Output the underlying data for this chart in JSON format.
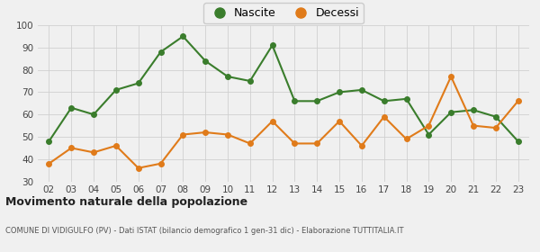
{
  "years": [
    "02",
    "03",
    "04",
    "05",
    "06",
    "07",
    "08",
    "09",
    "10",
    "11",
    "12",
    "13",
    "14",
    "15",
    "16",
    "17",
    "18",
    "19",
    "20",
    "21",
    "22",
    "23"
  ],
  "nascite": [
    48,
    63,
    60,
    71,
    74,
    88,
    95,
    84,
    77,
    75,
    91,
    66,
    66,
    70,
    71,
    66,
    67,
    51,
    61,
    62,
    59,
    48
  ],
  "decessi": [
    38,
    45,
    43,
    46,
    36,
    38,
    51,
    52,
    51,
    47,
    57,
    47,
    47,
    57,
    46,
    59,
    49,
    55,
    77,
    55,
    54,
    66
  ],
  "nascite_color": "#3a7d2c",
  "decessi_color": "#e07b1a",
  "bg_color": "#f0f0f0",
  "grid_color": "#d0d0d0",
  "ylim": [
    30,
    100
  ],
  "yticks": [
    30,
    40,
    50,
    60,
    70,
    80,
    90,
    100
  ],
  "title": "Movimento naturale della popolazione",
  "subtitle": "COMUNE DI VIDIGULFO (PV) - Dati ISTAT (bilancio demografico 1 gen-31 dic) - Elaborazione TUTTITALIA.IT",
  "legend_nascite": "Nascite",
  "legend_decessi": "Decessi",
  "marker_size": 4,
  "line_width": 1.5
}
